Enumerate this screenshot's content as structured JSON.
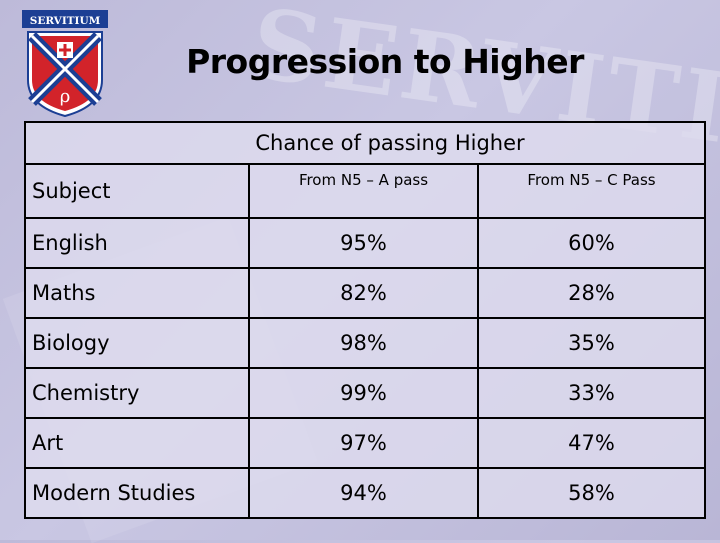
{
  "crest": {
    "text": "SERVITIUM",
    "colors": {
      "red": "#d2232a",
      "blue": "#1c3f94",
      "white": "#ffffff"
    }
  },
  "watermark": "SERVITIUM",
  "title": "Progression to Higher",
  "table": {
    "group_header": "Chance of passing Higher",
    "subject_header": "Subject",
    "col_a_header": "From N5 – A pass",
    "col_c_header": "From N5 – C Pass",
    "rows": [
      {
        "subject": "English",
        "a": "95%",
        "c": "60%"
      },
      {
        "subject": "Maths",
        "a": "82%",
        "c": "28%"
      },
      {
        "subject": "Biology",
        "a": "98%",
        "c": "35%"
      },
      {
        "subject": "Chemistry",
        "a": "99%",
        "c": "33%"
      },
      {
        "subject": "Art",
        "a": "97%",
        "c": "47%"
      },
      {
        "subject": "Modern Studies",
        "a": "94%",
        "c": "58%"
      }
    ]
  }
}
